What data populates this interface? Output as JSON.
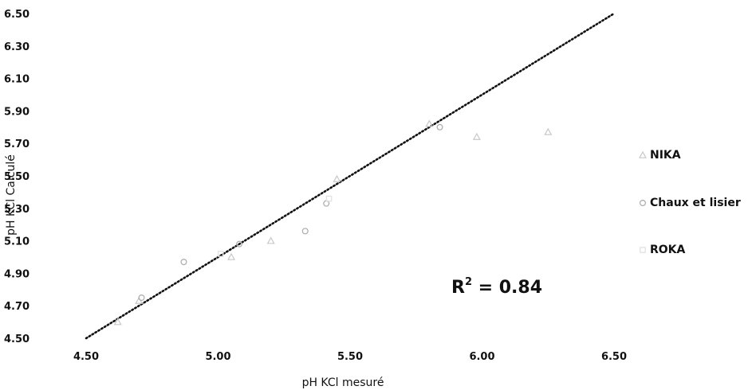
{
  "chart_data": {
    "type": "scatter",
    "xlabel": "pH KCl mesuré",
    "ylabel": "pH KCl Calculé",
    "xlim": [
      4.5,
      6.5
    ],
    "ylim": [
      4.5,
      6.5
    ],
    "x_ticks": [
      "4.50",
      "5.00",
      "5.50",
      "6.00",
      "6.50"
    ],
    "y_ticks": [
      "4.50",
      "4.70",
      "4.90",
      "5.10",
      "5.30",
      "5.50",
      "5.70",
      "5.90",
      "6.10",
      "6.30",
      "6.50"
    ],
    "grid": false,
    "legend_position": "right",
    "annotation": {
      "prefix": "R",
      "sup": "2",
      "rest": " = 0.84"
    },
    "reference_line": {
      "from": [
        4.5,
        4.5
      ],
      "to": [
        6.5,
        6.5
      ],
      "style": "dotted"
    },
    "series": [
      {
        "name": "NIKA",
        "marker": "triangle",
        "color": "#c8c8c8",
        "points": [
          [
            4.62,
            4.6
          ],
          [
            4.7,
            4.73
          ],
          [
            5.05,
            5.0
          ],
          [
            5.2,
            5.1
          ],
          [
            5.45,
            5.48
          ],
          [
            5.8,
            5.82
          ],
          [
            5.98,
            5.74
          ],
          [
            6.25,
            5.77
          ]
        ]
      },
      {
        "name": "Chaux et lisier",
        "marker": "circle",
        "color": "#aaaaaa",
        "points": [
          [
            4.71,
            4.75
          ],
          [
            4.87,
            4.97
          ],
          [
            5.08,
            5.08
          ],
          [
            5.33,
            5.16
          ],
          [
            5.41,
            5.33
          ],
          [
            5.84,
            5.8
          ]
        ]
      },
      {
        "name": "ROKA",
        "marker": "square",
        "color": "#e0e0e0",
        "points": [
          [
            5.01,
            5.02
          ],
          [
            5.42,
            5.36
          ]
        ]
      }
    ]
  }
}
